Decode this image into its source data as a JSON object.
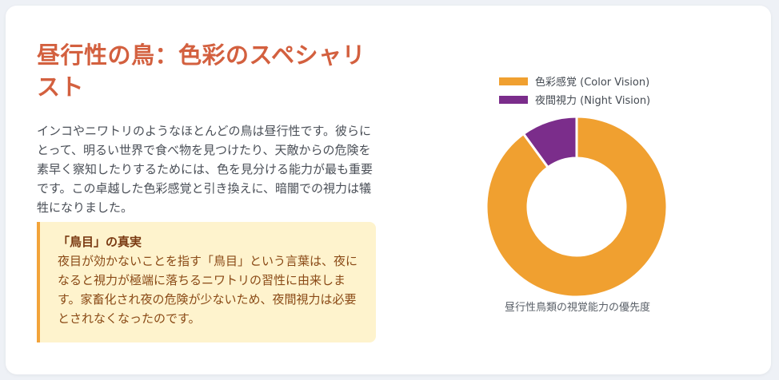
{
  "title": "昼行性の鳥：色彩のスペシャリスト",
  "description": "インコやニワトリのようなほとんどの鳥は昼行性です。彼らにとって、明るい世界で食べ物を見つけたり、天敵からの危険を素早く察知したりするためには、色を見分ける能力が最も重要です。この卓越した色彩感覚と引き換えに、暗闇での視力は犠牲になりました。",
  "callout": {
    "title": "「鳥目」の真実",
    "text": "夜目が効かないことを指す「鳥目」という言葉は、夜になると視力が極端に落ちるニワトリの習性に由来します。家畜化され夜の危険が少ないため、夜間視力は必要とされなくなったのです。"
  },
  "colors": {
    "title": "#d3603f",
    "accent": "#f2a33a",
    "color_vision": "#f0a030",
    "night_vision": "#7b2d8b"
  },
  "chart_data": {
    "type": "pie",
    "style": "doughnut",
    "legend_position": "top",
    "categories": [
      "色彩感覚 (Color Vision)",
      "夜間視力 (Night Vision)"
    ],
    "values": [
      90,
      10
    ],
    "colors": [
      "#f0a030",
      "#7b2d8b"
    ],
    "caption": "昼行性鳥類の視覚能力の優先度"
  }
}
